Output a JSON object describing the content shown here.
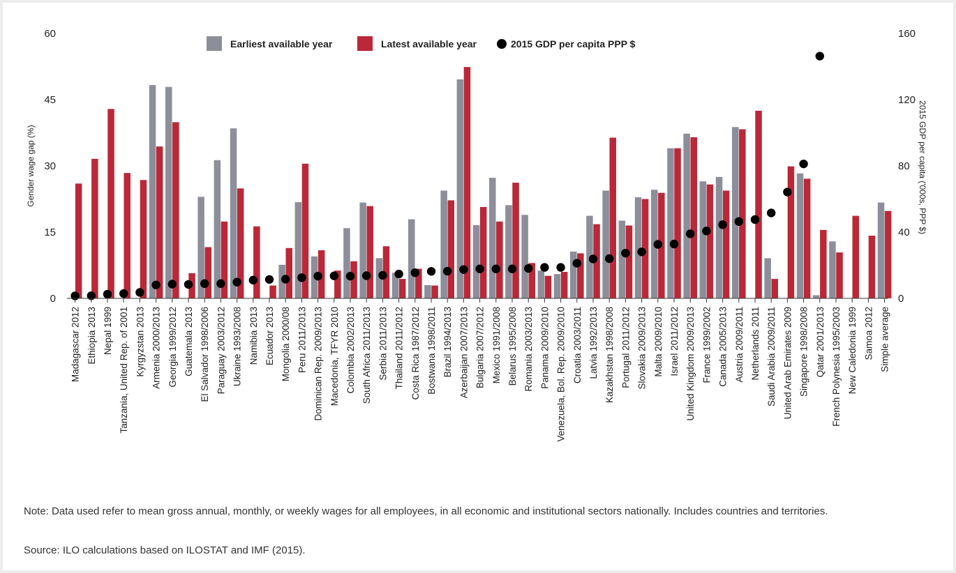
{
  "chart_data": {
    "type": "bar",
    "title": "",
    "ylabel": "Gender wage gap (%)",
    "y2label": "2015 GDP per capita ('000s, PPP $)",
    "ylim": [
      0,
      60
    ],
    "y2lim": [
      0,
      160
    ],
    "yticks": [
      "0",
      "15",
      "30",
      "45",
      "60"
    ],
    "y2ticks": [
      "0",
      "40",
      "80",
      "120",
      "160"
    ],
    "legend": [
      {
        "name": "Earliest available year",
        "color": "#8c8e9a",
        "shape": "rect"
      },
      {
        "name": "Latest available year",
        "color": "#bb2838",
        "shape": "rect"
      },
      {
        "name": "2015 GDP per capita PPP $",
        "color": "#000000",
        "shape": "circle"
      }
    ],
    "legend_position": "top",
    "categories": [
      "Madagascar 2012",
      "Ethiopia 2013",
      "Nepal 1999",
      "Tanzania, United Rep. of 2001",
      "Kyrgyzstan 2013",
      "Armenia 2000/2013",
      "Georgia 1999/2012",
      "Guatemala 2013",
      "El Salvador 1998/2006",
      "Paraguay 2003/2012",
      "Ukraine 1993/2008",
      "Namibia 2013",
      "Ecuador 2013",
      "Mongolia 2000/08",
      "Peru 2011/2013",
      "Dominican Rep. 2009/2013",
      "Macedonia, TFYR 2010",
      "Colombia 2002/2013",
      "South Africa 2011/2013",
      "Serbia 2011/2013",
      "Thailand 2011/2012",
      "Costa Rica 1987/2012",
      "Bostwana 1998/2011",
      "Brazil 1994/2013",
      "Azerbaijan 2007/2013",
      "Bulgaria 2007/2012",
      "Mexico 1991/2008",
      "Belarus 1995/2008",
      "Romania 2003/2013",
      "Panama 2009/2010",
      "Venezuela, Bol. Rep. 2009/2010",
      "Croatia 2003/2011",
      "Latvia 1992/2013",
      "Kazakhstan 1998/2008",
      "Portugal 2011/2012",
      "Slovakia 2009/2013",
      "Malta 2009/2010",
      "Israel 2011/2012",
      "United Kingdom 2009/2013",
      "France 1999/2002",
      "Canada 2005/2013",
      "Austria 2009/2011",
      "Netherlands 2011",
      "Saudi Arabia 2009/2011",
      "United Arab Emirates 2009",
      "Singapore 1998/2008",
      "Qatar 2001/2013",
      "French Polynesia 1995/2003",
      "New Caledonia 1999",
      "Samoa 2012",
      "Simple average"
    ],
    "series": [
      {
        "name": "Earliest available year",
        "values": [
          null,
          null,
          null,
          null,
          null,
          48.3,
          47.9,
          null,
          23.0,
          31.3,
          38.5,
          null,
          null,
          7.6,
          21.8,
          9.5,
          null,
          15.9,
          21.7,
          9.1,
          5.8,
          17.9,
          3.0,
          24.4,
          49.6,
          16.6,
          27.3,
          21.1,
          18.9,
          6.3,
          5.5,
          10.6,
          18.7,
          24.4,
          17.6,
          22.9,
          24.6,
          34.0,
          37.3,
          26.5,
          27.5,
          38.8,
          null,
          9.1,
          null,
          28.3,
          0.7,
          12.9,
          null,
          null,
          21.7
        ]
      },
      {
        "name": "Latest available year",
        "values": [
          26.0,
          31.6,
          42.9,
          28.4,
          26.8,
          34.4,
          39.9,
          5.7,
          11.6,
          17.4,
          24.9,
          16.3,
          2.9,
          11.4,
          30.5,
          10.9,
          6.3,
          8.4,
          20.9,
          11.8,
          4.4,
          6.7,
          2.9,
          22.2,
          52.4,
          20.7,
          17.4,
          26.2,
          8.0,
          5.1,
          6.0,
          10.2,
          16.8,
          36.4,
          16.5,
          22.5,
          23.9,
          34.0,
          36.5,
          25.8,
          24.4,
          38.3,
          42.5,
          4.4,
          29.9,
          27.1,
          15.5,
          10.4,
          18.7,
          14.2,
          19.8
        ]
      }
    ],
    "gdp_series": {
      "name": "2015 GDP per capita PPP $",
      "values": [
        1.5,
        1.6,
        2.5,
        2.9,
        3.6,
        8.1,
        8.6,
        8.4,
        8.9,
        8.9,
        9.8,
        11.0,
        11.4,
        11.6,
        12.5,
        13.4,
        13.6,
        13.4,
        13.7,
        13.9,
        14.7,
        15.5,
        16.3,
        16.4,
        17.4,
        17.8,
        17.8,
        17.8,
        18.1,
        18.7,
        18.7,
        21.2,
        23.8,
        24.0,
        27.3,
        28.1,
        32.6,
        32.8,
        39.0,
        40.7,
        44.5,
        46.4,
        47.6,
        51.6,
        64.2,
        81.2,
        146.3,
        null,
        null,
        null,
        null
      ]
    }
  },
  "notes": {
    "note": "Note: Data used refer to mean gross annual, monthly, or weekly wages for all employees, in all economic and institutional sectors nationally. Includes countries and territories.",
    "source": "Source: ILO calculations based on ILOSTAT and IMF (2015)."
  }
}
